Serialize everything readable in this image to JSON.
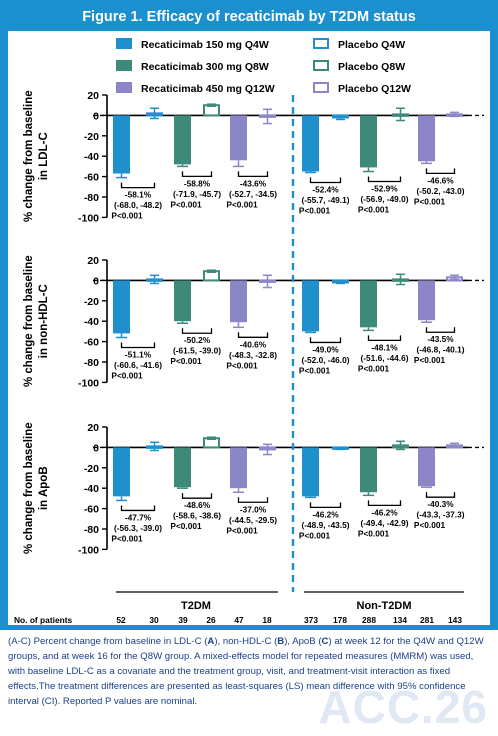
{
  "title": "Figure 1. Efficacy of recaticimab by T2DM status",
  "watermark": "ACC.26",
  "caption": {
    "part1": "(A-C) Percent change from baseline in LDL-C (",
    "bold_a": "A",
    "part2": "), non-HDL-C (",
    "bold_b": "B",
    "part3": "), ApoB (",
    "bold_c": "C",
    "part4": ") at week 12 for the Q4W and Q12W groups, and at week 16 for the Q8W group. A mixed-effects model for repeated measures (MMRM) was used, with baseline LDL-C as a covariate and the treatment group, visit, and treatment-visit interaction as fixed effects.The treatment differences are presented as least-squares (LS) mean difference with 95% confidence interval (CI). Reported P values are nominal."
  },
  "colors": {
    "background": "#1c8fcf",
    "rec150": "#1f8fcd",
    "rec300": "#3d8a7b",
    "rec450": "#8b86c6",
    "divider": "#1f8fcd"
  },
  "legend": [
    {
      "label": "Recaticimab 150 mg Q4W",
      "style": "filled",
      "color_key": "rec150"
    },
    {
      "label": "Recaticimab 300 mg Q8W",
      "style": "filled",
      "color_key": "rec300"
    },
    {
      "label": "Recaticimab 450 mg Q12W",
      "style": "filled",
      "color_key": "rec450"
    },
    {
      "label": "Placebo Q4W",
      "style": "outline",
      "color_key": "rec150"
    },
    {
      "label": "Placebo Q8W",
      "style": "outline",
      "color_key": "rec300"
    },
    {
      "label": "Placebo Q12W",
      "style": "outline",
      "color_key": "rec450"
    }
  ],
  "groups": [
    "T2DM",
    "Non-T2DM"
  ],
  "patients_label": "No. of patients",
  "patients": {
    "T2DM": [
      "52",
      "30",
      "39",
      "26",
      "47",
      "18"
    ],
    "Non-T2DM": [
      "373",
      "178",
      "288",
      "134",
      "281",
      "143"
    ]
  },
  "chart_data": [
    {
      "type": "bar",
      "panel": "A",
      "ylabel": [
        "% change from baseline",
        "in LDL-C"
      ],
      "ylim": [
        -100,
        20
      ],
      "yticks": [
        20,
        0,
        -20,
        -40,
        -60,
        -80,
        -100
      ],
      "categories": [
        "T2DM",
        "Non-T2DM"
      ],
      "series": [
        {
          "name": "Recaticimab 150 mg Q4W",
          "values": [
            -57,
            -55
          ]
        },
        {
          "name": "Placebo Q4W",
          "values": [
            2,
            -2
          ]
        },
        {
          "name": "Recaticimab 300 mg Q8W",
          "values": [
            -48,
            -51
          ]
        },
        {
          "name": "Placebo Q8W",
          "values": [
            10,
            1
          ]
        },
        {
          "name": "Recaticimab 450 mg Q12W",
          "values": [
            -44,
            -45
          ]
        },
        {
          "name": "Placebo Q12W",
          "values": [
            -1,
            1
          ]
        }
      ],
      "errors": {
        "active": [
          4,
          2,
          6,
          1,
          4,
          2
        ],
        "placebo": [
          5,
          1,
          7,
          2,
          6,
          2
        ]
      },
      "annotations": [
        [
          "-58.1%",
          "(-68.0, -48.2)",
          "P<0.001"
        ],
        [
          "-58.8%",
          "(-71.9, -45.7)",
          "P<0.001"
        ],
        [
          "-43.6%",
          "(-52.7, -34.5)",
          "P<0.001"
        ],
        [
          "-52.4%",
          "(-55.7, -49.1)",
          "P<0.001"
        ],
        [
          "-52.9%",
          "(-56.9, -49.0)",
          "P<0.001"
        ],
        [
          "-46.6%",
          "(-50.2, -43.0)",
          "P<0.001"
        ]
      ]
    },
    {
      "type": "bar",
      "panel": "B",
      "ylabel": [
        "% change from baseline",
        "in non-HDL-C"
      ],
      "ylim": [
        -100,
        20
      ],
      "yticks": [
        20,
        0,
        -20,
        -40,
        -60,
        -80,
        -100
      ],
      "categories": [
        "T2DM",
        "Non-T2DM"
      ],
      "series": [
        {
          "name": "Recaticimab 150 mg Q4W",
          "values": [
            -52,
            -50
          ]
        },
        {
          "name": "Placebo Q4W",
          "values": [
            1,
            -2
          ]
        },
        {
          "name": "Recaticimab 300 mg Q8W",
          "values": [
            -40,
            -46
          ]
        },
        {
          "name": "Placebo Q8W",
          "values": [
            9,
            1
          ]
        },
        {
          "name": "Recaticimab 450 mg Q12W",
          "values": [
            -41,
            -39
          ]
        },
        {
          "name": "Placebo Q12W",
          "values": [
            -1,
            3
          ]
        }
      ],
      "errors": {
        "active": [
          4,
          2,
          5,
          1,
          3,
          2
        ],
        "placebo": [
          4,
          1,
          6,
          1,
          5,
          2
        ]
      },
      "annotations": [
        [
          "-51.1%",
          "(-60.6, -41.6)",
          "P<0.001"
        ],
        [
          "-50.2%",
          "(-61.5, -39.0)",
          "P<0.001"
        ],
        [
          "-40.6%",
          "(-48.3, -32.8)",
          "P<0.001"
        ],
        [
          "-49.0%",
          "(-52.0, -46.0)",
          "P<0.001"
        ],
        [
          "-48.1%",
          "(-51.6, -44.6)",
          "P<0.001"
        ],
        [
          "-43.5%",
          "(-46.8, -40.1)",
          "P<0.001"
        ]
      ]
    },
    {
      "type": "bar",
      "panel": "C",
      "ylabel": [
        "% change from baseline",
        "in ApoB"
      ],
      "ylim": [
        -100,
        20
      ],
      "yticks": [
        20,
        0,
        -20,
        -40,
        -60,
        -80,
        -100
      ],
      "categories": [
        "T2DM",
        "Non-T2DM"
      ],
      "series": [
        {
          "name": "Recaticimab 150 mg Q4W",
          "values": [
            -48,
            -48
          ]
        },
        {
          "name": "Placebo Q4W",
          "values": [
            1,
            -1
          ]
        },
        {
          "name": "Recaticimab 300 mg Q8W",
          "values": [
            -39,
            -44
          ]
        },
        {
          "name": "Placebo Q8W",
          "values": [
            9,
            2
          ]
        },
        {
          "name": "Recaticimab 450 mg Q12W",
          "values": [
            -40,
            -38
          ]
        },
        {
          "name": "Placebo Q12W",
          "values": [
            -2,
            2
          ]
        }
      ],
      "errors": {
        "active": [
          4,
          1,
          4,
          1,
          3,
          1
        ],
        "placebo": [
          4,
          1,
          5,
          1,
          4,
          2
        ]
      },
      "annotations": [
        [
          "-47.7%",
          "(-56.3, -39.0)",
          "P<0.001"
        ],
        [
          "-48.6%",
          "(-58.6, -38.6)",
          "P<0.001"
        ],
        [
          "-37.0%",
          "(-44.5, -29.5)",
          "P<0.001"
        ],
        [
          "-46.2%",
          "(-48.9, -43.5)",
          "P<0.001"
        ],
        [
          "-46.2%",
          "(-49.4, -42.9)",
          "P<0.001"
        ],
        [
          "-40.3%",
          "(-43.3, -37.3)",
          "P<0.001"
        ]
      ]
    }
  ]
}
